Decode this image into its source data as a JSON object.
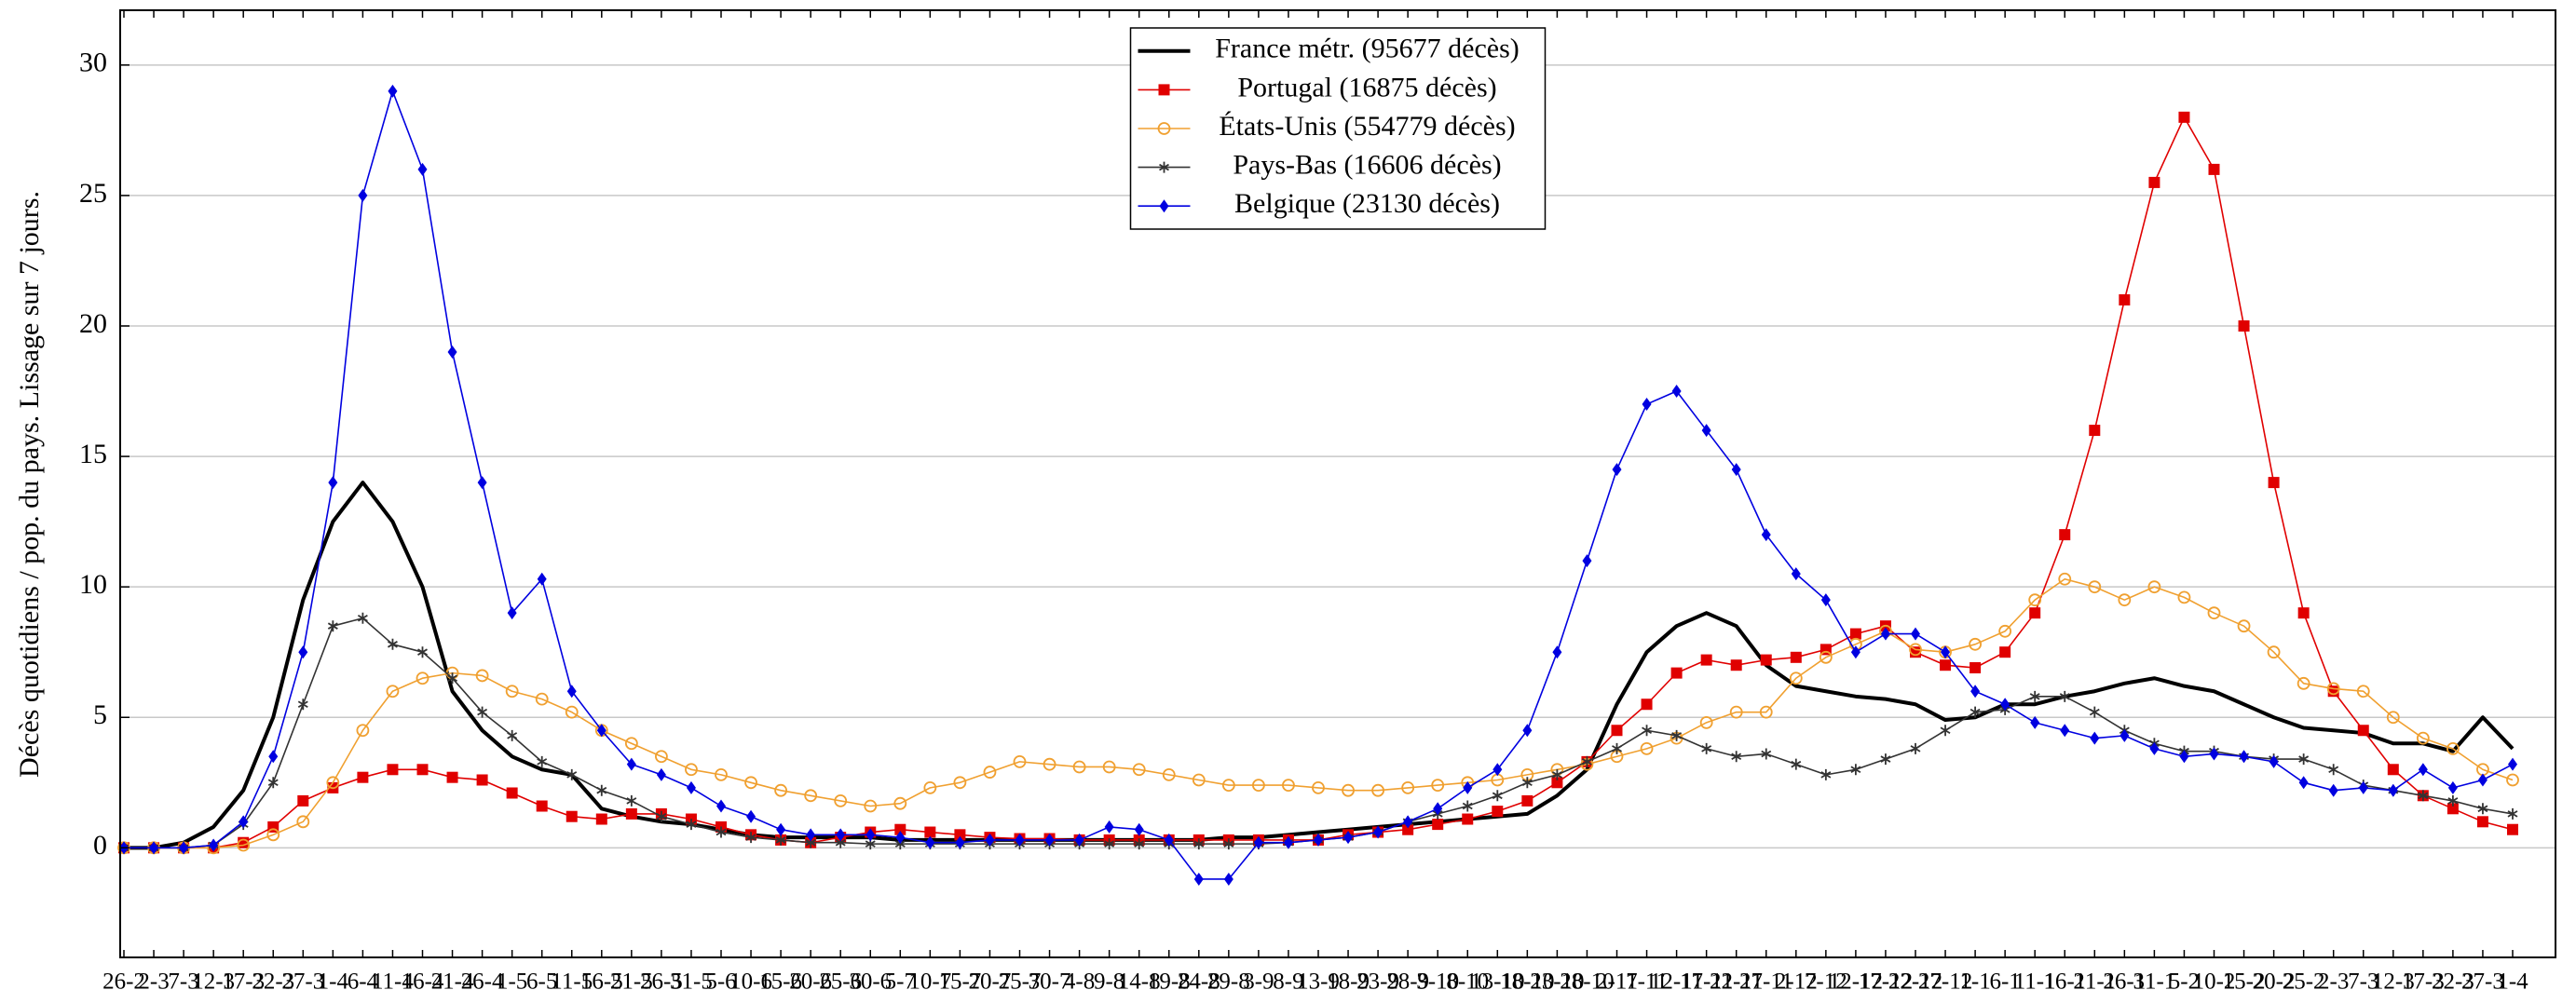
{
  "chart_data": {
    "type": "line",
    "y_label": "Décès quotidiens / pop. du pays. Lissage sur 7 jours.",
    "categories": [
      "26-2",
      "2-3",
      "7-3",
      "12-3",
      "17-3",
      "22-3",
      "27-3",
      "1-4",
      "6-4",
      "11-4",
      "16-4",
      "21-4",
      "26-4",
      "1-5",
      "6-5",
      "11-5",
      "16-5",
      "21-5",
      "26-5",
      "31-5",
      "5-6",
      "10-6",
      "15-6",
      "20-6",
      "25-6",
      "30-6",
      "5-7",
      "10-7",
      "15-7",
      "20-7",
      "25-7",
      "30-7",
      "4-8",
      "9-8",
      "14-8",
      "19-8",
      "24-8",
      "29-8",
      "3-9",
      "8-9",
      "13-9",
      "18-9",
      "23-9",
      "28-9",
      "3-10",
      "8-10",
      "13-10",
      "18-10",
      "23-10",
      "28-10",
      "2-11",
      "7-11",
      "12-11",
      "17-11",
      "22-11",
      "27-11",
      "2-12",
      "7-12",
      "12-12",
      "17-12",
      "22-12",
      "27-12",
      "1-1",
      "6-1",
      "11-1",
      "16-1",
      "21-1",
      "26-1",
      "31-1",
      "5-2",
      "10-2",
      "15-2",
      "20-2",
      "25-2",
      "2-3",
      "7-3",
      "12-3",
      "17-3",
      "22-3",
      "27-3",
      "1-4"
    ],
    "series": [
      {
        "name": "France métr. (95677 décès)",
        "color": "#000000",
        "values": [
          0,
          0,
          0.2,
          0.8,
          2.2,
          5,
          9.5,
          12.5,
          14,
          12.5,
          10,
          6,
          4.5,
          3.5,
          3,
          2.8,
          1.5,
          1.2,
          1,
          0.9,
          0.7,
          0.5,
          0.4,
          0.4,
          0.4,
          0.4,
          0.3,
          0.3,
          0.3,
          0.3,
          0.3,
          0.3,
          0.3,
          0.3,
          0.3,
          0.3,
          0.3,
          0.4,
          0.4,
          0.5,
          0.6,
          0.7,
          0.8,
          0.9,
          1.0,
          1.1,
          1.2,
          1.3,
          2.0,
          3.0,
          5.5,
          7.5,
          8.5,
          9.0,
          8.5,
          7.0,
          6.2,
          6.0,
          5.8,
          5.7,
          5.5,
          4.9,
          5.0,
          5.5,
          5.5,
          5.8,
          6.0,
          6.3,
          6.5,
          6.2,
          6.0,
          5.5,
          5.0,
          4.6,
          4.5,
          4.4,
          4.0,
          4.0,
          3.7,
          5.0,
          3.8
        ]
      },
      {
        "name": "Portugal (16875 décès)",
        "color": "#e00000",
        "marker": "square",
        "values": [
          0,
          0,
          0,
          0,
          0.2,
          0.8,
          1.8,
          2.3,
          2.7,
          3.0,
          3.0,
          2.7,
          2.6,
          2.1,
          1.6,
          1.2,
          1.1,
          1.3,
          1.3,
          1.1,
          0.8,
          0.5,
          0.3,
          0.2,
          0.4,
          0.6,
          0.7,
          0.6,
          0.5,
          0.4,
          0.35,
          0.35,
          0.3,
          0.3,
          0.3,
          0.3,
          0.3,
          0.3,
          0.3,
          0.3,
          0.3,
          0.5,
          0.6,
          0.7,
          0.9,
          1.1,
          1.4,
          1.8,
          2.5,
          3.3,
          4.5,
          5.5,
          6.7,
          7.2,
          7.0,
          7.2,
          7.3,
          7.6,
          8.2,
          8.5,
          7.5,
          7.0,
          6.9,
          7.5,
          9.0,
          12,
          16,
          21,
          25.5,
          28,
          26,
          20,
          14,
          9,
          6,
          4.5,
          3.0,
          2.0,
          1.5,
          1.0,
          0.7
        ]
      },
      {
        "name": "États-Unis (554779 décès)",
        "color": "#f0a030",
        "marker": "circle",
        "values": [
          0,
          0,
          0,
          0,
          0.1,
          0.5,
          1.0,
          2.5,
          4.5,
          6.0,
          6.5,
          6.7,
          6.6,
          6.0,
          5.7,
          5.2,
          4.5,
          4.0,
          3.5,
          3.0,
          2.8,
          2.5,
          2.2,
          2.0,
          1.8,
          1.6,
          1.7,
          2.3,
          2.5,
          2.9,
          3.3,
          3.2,
          3.1,
          3.1,
          3.0,
          2.8,
          2.6,
          2.4,
          2.4,
          2.4,
          2.3,
          2.2,
          2.2,
          2.3,
          2.4,
          2.5,
          2.6,
          2.8,
          3.0,
          3.2,
          3.5,
          3.8,
          4.2,
          4.8,
          5.2,
          5.2,
          6.5,
          7.3,
          7.8,
          8.3,
          7.6,
          7.5,
          7.8,
          8.3,
          9.5,
          10.3,
          10.0,
          9.5,
          10.0,
          9.6,
          9.0,
          8.5,
          7.5,
          6.3,
          6.1,
          6.0,
          5.0,
          4.2,
          3.8,
          3.0,
          2.6
        ]
      },
      {
        "name": "Pays-Bas (16606 décès)",
        "color": "#333333",
        "marker": "star",
        "values": [
          0,
          0,
          0,
          0.1,
          0.9,
          2.5,
          5.5,
          8.5,
          8.8,
          7.8,
          7.5,
          6.5,
          5.2,
          4.3,
          3.3,
          2.8,
          2.2,
          1.8,
          1.2,
          0.9,
          0.6,
          0.4,
          0.3,
          0.2,
          0.2,
          0.15,
          0.15,
          0.15,
          0.15,
          0.15,
          0.15,
          0.15,
          0.15,
          0.15,
          0.15,
          0.15,
          0.15,
          0.15,
          0.15,
          0.2,
          0.3,
          0.4,
          0.6,
          1.0,
          1.3,
          1.6,
          2.0,
          2.5,
          2.8,
          3.3,
          3.8,
          4.5,
          4.3,
          3.8,
          3.5,
          3.6,
          3.2,
          2.8,
          3.0,
          3.4,
          3.8,
          4.5,
          5.2,
          5.3,
          5.8,
          5.8,
          5.2,
          4.5,
          4.0,
          3.7,
          3.7,
          3.5,
          3.4,
          3.4,
          3.0,
          2.4,
          2.2,
          2.0,
          1.8,
          1.5,
          1.3
        ]
      },
      {
        "name": "Belgique (23130 décès)",
        "color": "#0000e0",
        "marker": "diamond",
        "values": [
          0,
          0,
          0,
          0.1,
          1.0,
          3.5,
          7.5,
          14,
          25,
          29,
          26,
          19,
          14,
          9.0,
          10.3,
          6.0,
          4.5,
          3.2,
          2.8,
          2.3,
          1.6,
          1.2,
          0.7,
          0.5,
          0.5,
          0.5,
          0.4,
          0.2,
          0.2,
          0.3,
          0.3,
          0.3,
          0.3,
          0.8,
          0.7,
          0.3,
          -1.2,
          -1.2,
          0.2,
          0.2,
          0.3,
          0.4,
          0.6,
          1.0,
          1.5,
          2.3,
          3.0,
          4.5,
          7.5,
          11,
          14.5,
          17,
          17.5,
          16,
          14.5,
          12,
          10.5,
          9.5,
          7.5,
          8.2,
          8.2,
          7.5,
          6.0,
          5.5,
          4.8,
          4.5,
          4.2,
          4.3,
          3.8,
          3.5,
          3.6,
          3.5,
          3.3,
          2.5,
          2.2,
          2.3,
          2.2,
          3.0,
          2.3,
          2.6,
          3.2
        ]
      }
    ],
    "ylim": [
      -4.2,
      32.1
    ],
    "yticks": [
      0,
      5,
      10,
      15,
      20,
      25,
      30
    ],
    "grid": true,
    "legend": "top-center"
  }
}
